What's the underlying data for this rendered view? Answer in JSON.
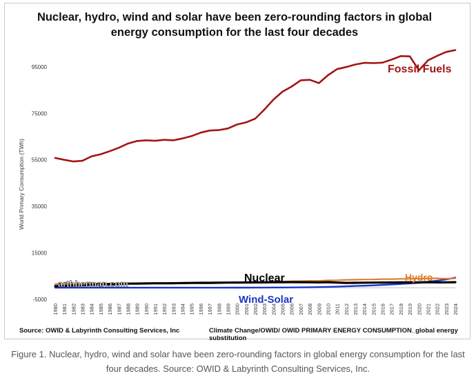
{
  "figure": {
    "source_left": "Source: OWID & Labyrinth Consulting Services, Inc",
    "source_right": "Climate Change/OWID/ OWID PRIMARY ENERGY CONSUMPTION_global energy substitution",
    "watermark": "arthberman.com",
    "caption": "Figure 1. Nuclear, hydro, wind and solar have been zero-rounding factors in global energy consumption for the last four decades. Source: OWID & Labyrinth Consulting Services, Inc."
  },
  "chart_data": {
    "type": "line",
    "title": "Nuclear, hydro, wind and solar have been zero-rounding factors in global energy consumption for the last four decades",
    "ylabel": "World Primary Consumption (TWh)",
    "xlabel": "",
    "ylim": [
      -5000,
      100000
    ],
    "yticks": [
      -5000,
      15000,
      35000,
      55000,
      75000,
      95000
    ],
    "x": [
      "1980",
      "1981",
      "1982",
      "1983",
      "1984",
      "1985",
      "1986",
      "1987",
      "1988",
      "1989",
      "1990",
      "1991",
      "1992",
      "1993",
      "1994",
      "1995",
      "1996",
      "1997",
      "1998",
      "1999",
      "2000",
      "2001",
      "2002",
      "2003",
      "2004",
      "2005",
      "2006",
      "2007",
      "2008",
      "2009",
      "2010",
      "2011",
      "2012",
      "2013",
      "2014",
      "2015",
      "2016",
      "2017",
      "2018",
      "2019",
      "2020",
      "2021",
      "2022",
      "2023",
      "2024"
    ],
    "grid": false,
    "legend": "none",
    "series": [
      {
        "name": "Fossil Fuels",
        "color": "#a31515",
        "values": [
          55800,
          55000,
          54300,
          54600,
          56500,
          57400,
          58700,
          60200,
          62000,
          63100,
          63400,
          63200,
          63600,
          63400,
          64200,
          65200,
          66700,
          67600,
          67800,
          68500,
          70200,
          71100,
          72700,
          76600,
          80900,
          84300,
          86500,
          89200,
          89400,
          88000,
          91400,
          94000,
          94900,
          96000,
          96700,
          96600,
          96800,
          98100,
          99600,
          99500,
          93500,
          97800,
          99700,
          101400,
          102200
        ]
      },
      {
        "name": "Nuclear",
        "color": "#000000",
        "values": [
          700,
          850,
          950,
          1050,
          1250,
          1450,
          1550,
          1650,
          1750,
          1800,
          1850,
          1900,
          1920,
          1950,
          2000,
          2050,
          2120,
          2100,
          2150,
          2200,
          2250,
          2280,
          2300,
          2300,
          2380,
          2400,
          2420,
          2380,
          2350,
          2300,
          2380,
          2250,
          2100,
          2120,
          2170,
          2200,
          2230,
          2260,
          2300,
          2350,
          2300,
          2400,
          2300,
          2330,
          2400
        ]
      },
      {
        "name": "Hydro",
        "color": "#e07b2a",
        "values": [
          1550,
          1600,
          1620,
          1680,
          1720,
          1750,
          1780,
          1800,
          1850,
          1870,
          1900,
          1960,
          1980,
          2050,
          2080,
          2180,
          2250,
          2290,
          2300,
          2320,
          2380,
          2350,
          2400,
          2450,
          2580,
          2680,
          2800,
          2850,
          2950,
          2980,
          3150,
          3220,
          3380,
          3450,
          3550,
          3580,
          3680,
          3700,
          3800,
          3850,
          3950,
          3950,
          4050,
          3900,
          4050
        ]
      },
      {
        "name": "Wind-Solar",
        "color": "#1a35c7",
        "values": [
          0,
          0,
          0,
          0,
          0,
          0,
          0,
          0,
          0,
          0,
          5,
          7,
          9,
          11,
          13,
          16,
          19,
          22,
          26,
          32,
          40,
          48,
          60,
          72,
          90,
          110,
          140,
          175,
          230,
          290,
          360,
          470,
          600,
          740,
          860,
          1020,
          1200,
          1400,
          1620,
          1850,
          2120,
          2550,
          3050,
          3560,
          4350
        ]
      }
    ],
    "annotations": [
      {
        "text": "Fossil Fuels",
        "color": "#a31515"
      },
      {
        "text": "Nuclear",
        "color": "#000000"
      },
      {
        "text": "Hydro",
        "color": "#e07b2a"
      },
      {
        "text": "Wind-Solar",
        "color": "#1a35c7"
      }
    ]
  }
}
